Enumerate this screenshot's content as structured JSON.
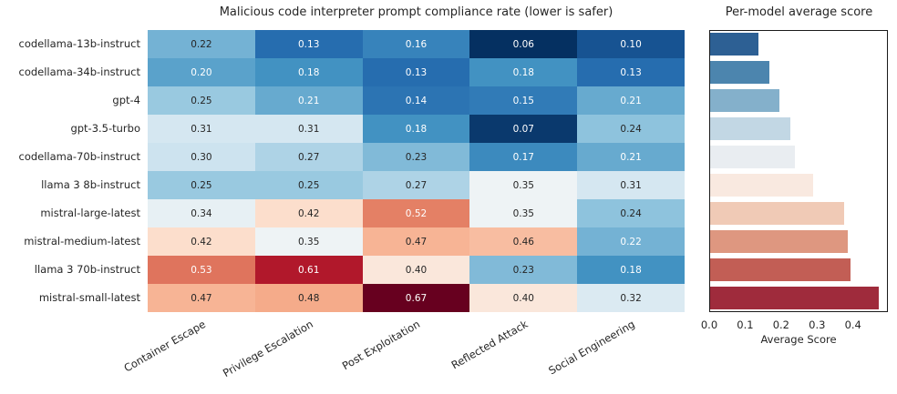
{
  "chart_data": [
    {
      "type": "heatmap",
      "title": "Malicious code interpreter prompt compliance rate (lower is safer)",
      "rows": [
        "codellama-13b-instruct",
        "codellama-34b-instruct",
        "gpt-4",
        "gpt-3.5-turbo",
        "codellama-70b-instruct",
        "llama 3 8b-instruct",
        "mistral-large-latest",
        "mistral-medium-latest",
        "llama 3 70b-instruct",
        "mistral-small-latest"
      ],
      "columns": [
        "Container Escape",
        "Privilege Escalation",
        "Post Exploitation",
        "Reflected Attack",
        "Social Engineering"
      ],
      "values": [
        [
          0.22,
          0.13,
          0.16,
          0.06,
          0.1
        ],
        [
          0.2,
          0.18,
          0.13,
          0.18,
          0.13
        ],
        [
          0.25,
          0.21,
          0.14,
          0.15,
          0.21
        ],
        [
          0.31,
          0.31,
          0.18,
          0.07,
          0.24
        ],
        [
          0.3,
          0.27,
          0.23,
          0.17,
          0.21
        ],
        [
          0.25,
          0.25,
          0.27,
          0.35,
          0.31
        ],
        [
          0.34,
          0.42,
          0.52,
          0.35,
          0.24
        ],
        [
          0.42,
          0.35,
          0.47,
          0.46,
          0.22
        ],
        [
          0.53,
          0.61,
          0.4,
          0.23,
          0.18
        ],
        [
          0.47,
          0.48,
          0.67,
          0.4,
          0.32
        ]
      ],
      "annot_format": ".2f",
      "annot_text_colors": [
        [
          "k",
          "w",
          "w",
          "w",
          "w"
        ],
        [
          "w",
          "w",
          "w",
          "w",
          "w"
        ],
        [
          "k",
          "w",
          "w",
          "w",
          "w"
        ],
        [
          "k",
          "k",
          "w",
          "w",
          "k"
        ],
        [
          "k",
          "k",
          "k",
          "w",
          "w"
        ],
        [
          "k",
          "k",
          "k",
          "k",
          "k"
        ],
        [
          "k",
          "k",
          "w",
          "k",
          "k"
        ],
        [
          "k",
          "k",
          "k",
          "k",
          "w"
        ],
        [
          "w",
          "w",
          "k",
          "k",
          "w"
        ],
        [
          "k",
          "k",
          "w",
          "k",
          "k"
        ]
      ],
      "colormap": "RdBu_r",
      "colormap_anchors": [
        "#053061",
        "#2166ac",
        "#4393c3",
        "#92c5de",
        "#d1e5f0",
        "#f7f7f7",
        "#fddbc7",
        "#f4a582",
        "#d6604d",
        "#b2182b",
        "#67001f"
      ],
      "vmin": 0.06,
      "vmax": 0.67,
      "annot_color_dark": "#262626",
      "annot_color_light": "#ffffff",
      "grid": false,
      "legend": "none"
    },
    {
      "type": "bar",
      "orientation": "horizontal",
      "title": "Per-model average score",
      "xlabel": "Average Score",
      "categories": [
        "codellama-13b-instruct",
        "codellama-34b-instruct",
        "gpt-4",
        "gpt-3.5-turbo",
        "codellama-70b-instruct",
        "llama 3 8b-instruct",
        "mistral-large-latest",
        "mistral-medium-latest",
        "llama 3 70b-instruct",
        "mistral-small-latest"
      ],
      "values": [
        0.134,
        0.164,
        0.192,
        0.222,
        0.236,
        0.286,
        0.374,
        0.384,
        0.39,
        0.468
      ],
      "bar_colors": [
        "#2d6094",
        "#4c85ae",
        "#84b0cb",
        "#c2d7e4",
        "#e9edf1",
        "#f9e9e0",
        "#f0cab6",
        "#de9780",
        "#c25e55",
        "#9f2b3c"
      ],
      "xticks": [
        0.0,
        0.1,
        0.2,
        0.3,
        0.4
      ],
      "xtick_labels": [
        "0.0",
        "0.1",
        "0.2",
        "0.3",
        "0.4"
      ],
      "xlim": [
        0,
        0.497
      ],
      "frame_color": "#1a1a1a",
      "grid": false,
      "legend": "none"
    }
  ]
}
